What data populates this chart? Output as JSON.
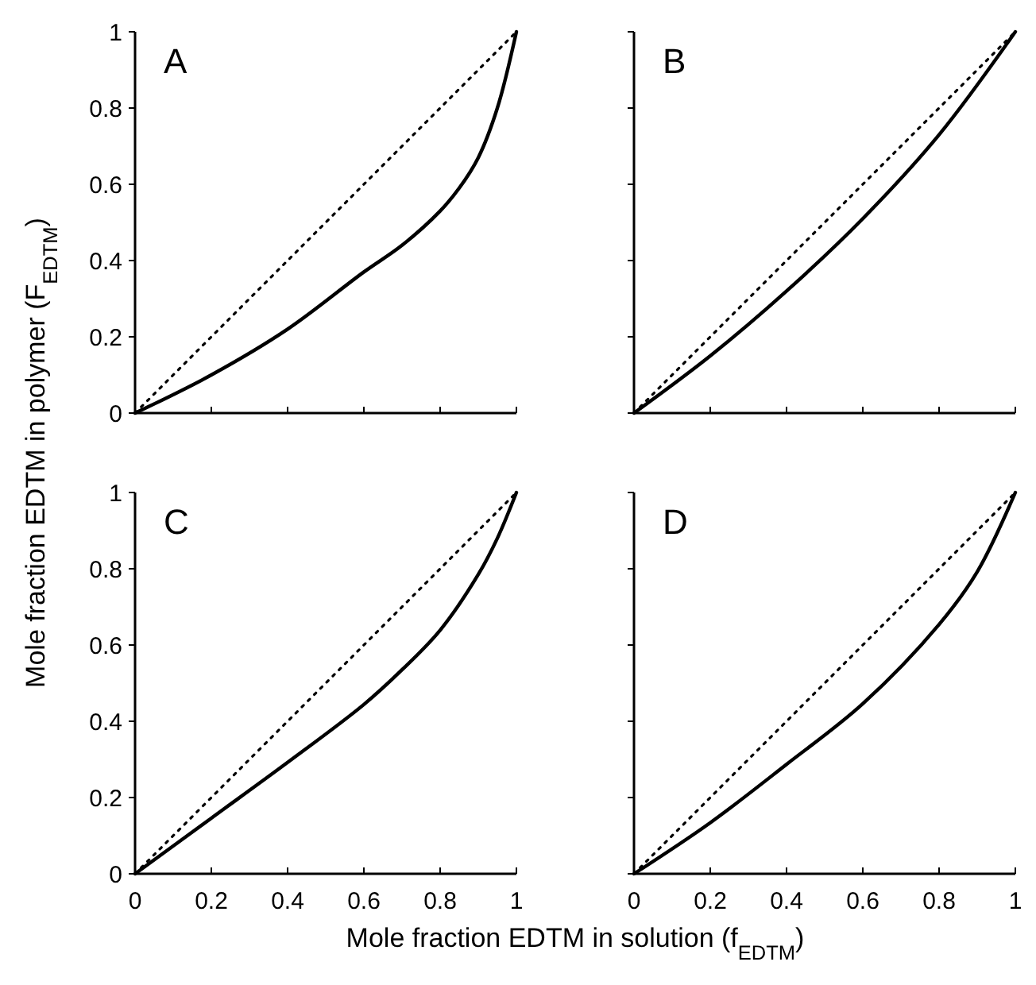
{
  "chart_data": [
    {
      "type": "line",
      "title": "A",
      "ylabel": "Mole fraction EDTM in polymer (F$_{EDTM}$)",
      "xlim": [
        0,
        1
      ],
      "ylim": [
        0,
        1
      ],
      "xticks": [
        0,
        0.2,
        0.4,
        0.6,
        0.8,
        1
      ],
      "yticks": [
        0,
        0.2,
        0.4,
        0.6,
        0.8,
        1
      ],
      "tick_labels": "y",
      "grid": false,
      "marker": "none",
      "series": [
        {
          "color": "#000000",
          "line_style": "solid",
          "x": [
            0,
            0.2,
            0.4,
            0.6,
            0.7,
            0.8,
            0.85,
            0.9,
            0.95,
            1
          ],
          "values": [
            0,
            0.1,
            0.22,
            0.37,
            0.44,
            0.53,
            0.59,
            0.67,
            0.8,
            1
          ]
        },
        {
          "color": "#000000",
          "line_style": "dotted",
          "x": [
            0,
            1
          ],
          "values": [
            0,
            1
          ]
        }
      ]
    },
    {
      "type": "line",
      "title": "B",
      "xlim": [
        0,
        1
      ],
      "ylim": [
        0,
        1
      ],
      "xticks": [
        0,
        0.2,
        0.4,
        0.6,
        0.8,
        1
      ],
      "yticks": [
        0,
        0.2,
        0.4,
        0.6,
        0.8,
        1
      ],
      "tick_labels": false,
      "grid": false,
      "marker": "none",
      "series": [
        {
          "color": "#000000",
          "line_style": "solid",
          "x": [
            0,
            0.2,
            0.4,
            0.6,
            0.8,
            1
          ],
          "values": [
            0,
            0.15,
            0.32,
            0.51,
            0.73,
            1
          ]
        },
        {
          "color": "#000000",
          "line_style": "dotted",
          "x": [
            0,
            1
          ],
          "values": [
            0,
            1
          ]
        }
      ]
    },
    {
      "type": "line",
      "title": "C",
      "xlabel": "Mole fraction EDTM in solution (f$_{EDTM}$)",
      "xlim": [
        0,
        1
      ],
      "ylim": [
        0,
        1
      ],
      "xticks": [
        0,
        0.2,
        0.4,
        0.6,
        0.8,
        1
      ],
      "yticks": [
        0,
        0.2,
        0.4,
        0.6,
        0.8,
        1
      ],
      "grid": false,
      "marker": "none",
      "series": [
        {
          "color": "#000000",
          "line_style": "solid",
          "x": [
            0,
            0.2,
            0.4,
            0.6,
            0.7,
            0.8,
            0.9,
            0.95,
            1
          ],
          "values": [
            0,
            0.146,
            0.292,
            0.444,
            0.535,
            0.639,
            0.785,
            0.88,
            1
          ]
        },
        {
          "color": "#000000",
          "line_style": "dotted",
          "x": [
            0,
            1
          ],
          "values": [
            0,
            1
          ]
        }
      ]
    },
    {
      "type": "line",
      "title": "D",
      "xlim": [
        0,
        1
      ],
      "ylim": [
        0,
        1
      ],
      "xticks": [
        0,
        0.2,
        0.4,
        0.6,
        0.8,
        1
      ],
      "yticks": [
        0,
        0.2,
        0.4,
        0.6,
        0.8,
        1
      ],
      "tick_labels": "x",
      "grid": false,
      "marker": "none",
      "series": [
        {
          "color": "#000000",
          "line_style": "solid",
          "x": [
            0,
            0.2,
            0.4,
            0.6,
            0.8,
            0.9,
            1
          ],
          "values": [
            0,
            0.134,
            0.287,
            0.446,
            0.654,
            0.792,
            1
          ]
        },
        {
          "color": "#000000",
          "line_style": "dotted",
          "x": [
            0,
            1
          ],
          "values": [
            0,
            1
          ]
        }
      ]
    }
  ]
}
